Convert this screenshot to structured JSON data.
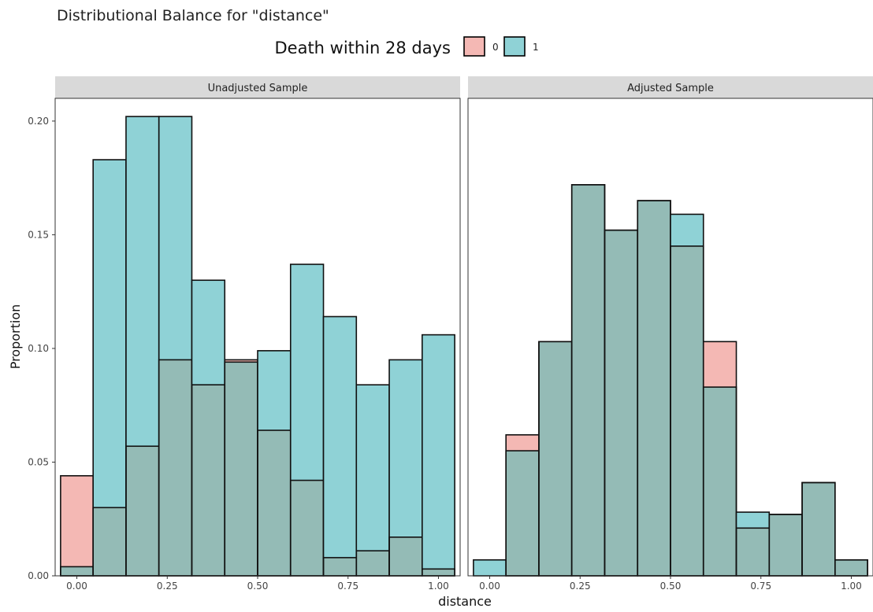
{
  "chart_data": {
    "type": "bar",
    "title": "Distributional Balance for \"distance\"",
    "xlabel": "distance",
    "ylabel": "Proportion",
    "legend": {
      "title": "Death within 28 days",
      "position": "top",
      "items": [
        {
          "name": "0",
          "color": "#F4B8B4"
        },
        {
          "name": "1",
          "color": "#8FD2D6"
        }
      ]
    },
    "overlap_color": "#94BBB6",
    "strip_fill": "#D9D9D9",
    "grid": false,
    "xlim": [
      -0.06,
      1.06
    ],
    "ylim": [
      0,
      0.21
    ],
    "x_ticks": [
      0.0,
      0.25,
      0.5,
      0.75,
      1.0
    ],
    "x_tick_labels": [
      "0.00",
      "0.25",
      "0.50",
      "0.75",
      "1.00"
    ],
    "y_ticks": [
      0.0,
      0.05,
      0.1,
      0.15,
      0.2
    ],
    "y_tick_labels": [
      "0.00",
      "0.05",
      "0.10",
      "0.15",
      "0.20"
    ],
    "bin_edges": [
      -0.045,
      0.045,
      0.136,
      0.227,
      0.318,
      0.409,
      0.5,
      0.591,
      0.682,
      0.773,
      0.864,
      0.955,
      1.045
    ],
    "panels": [
      {
        "title": "Unadjusted Sample",
        "series": [
          {
            "name": "0",
            "values": [
              0.044,
              0.03,
              0.057,
              0.095,
              0.084,
              0.095,
              0.064,
              0.042,
              0.008,
              0.011,
              0.017,
              0.003
            ]
          },
          {
            "name": "1",
            "values": [
              0.004,
              0.183,
              0.202,
              0.202,
              0.13,
              0.094,
              0.099,
              0.137,
              0.114,
              0.084,
              0.095,
              0.106
            ]
          }
        ]
      },
      {
        "title": "Adjusted Sample",
        "series": [
          {
            "name": "0",
            "values": [
              0.0,
              0.062,
              0.103,
              0.172,
              0.152,
              0.165,
              0.145,
              0.103,
              0.021,
              0.027,
              0.041,
              0.007
            ]
          },
          {
            "name": "1",
            "values": [
              0.007,
              0.055,
              0.103,
              0.172,
              0.152,
              0.165,
              0.159,
              0.083,
              0.028,
              0.027,
              0.041,
              0.007
            ]
          }
        ]
      }
    ]
  }
}
